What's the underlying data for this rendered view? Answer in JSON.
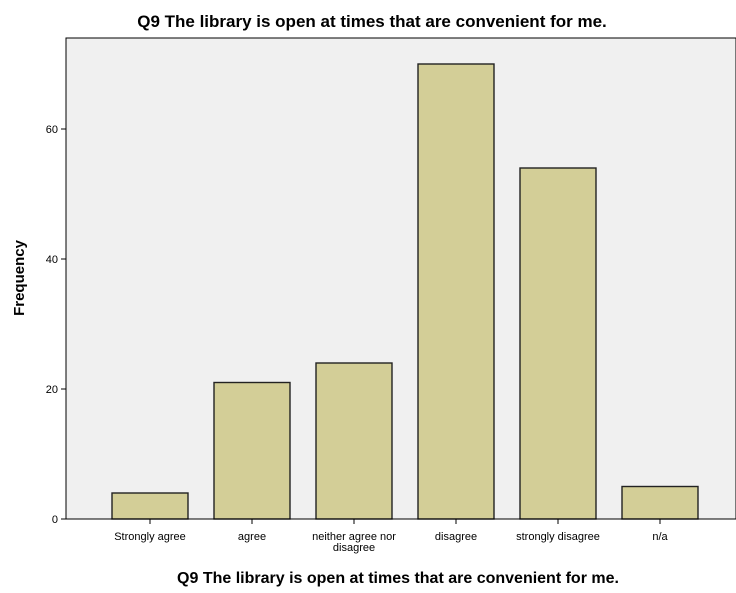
{
  "chart_data": {
    "type": "bar",
    "title": "Q9 The library is open at times that are convenient for me.",
    "xlabel": "Q9 The library is open at times that are convenient for me.",
    "ylabel": "Frequency",
    "categories": [
      [
        "Strongly agree"
      ],
      [
        "agree"
      ],
      [
        "neither agree nor",
        "disagree"
      ],
      [
        "disagree"
      ],
      [
        "strongly disagree"
      ],
      [
        "n/a"
      ]
    ],
    "values": [
      4,
      21,
      24,
      70,
      54,
      5
    ],
    "ylim": [
      0,
      74
    ],
    "yticks": [
      0,
      20,
      40,
      60
    ],
    "grid": false,
    "legend": "none",
    "colors": {
      "plot_background": "#f0f0f0",
      "bar_fill": "#d3ce97",
      "bar_stroke": "#222222",
      "axis": "#000000",
      "text": "#000000"
    }
  }
}
